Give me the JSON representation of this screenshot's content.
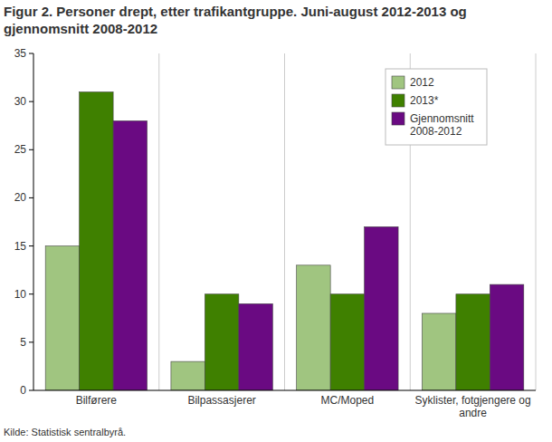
{
  "chart_data": {
    "type": "bar",
    "title": "Figur 2. Personer drept, etter trafikantgruppe. Juni-august 2012-2013 og gjennomsnitt 2008-2012",
    "categories": [
      "Bilførere",
      "Bilpassasjerer",
      "MC/Moped",
      "Syklister, fotgjengere og andre"
    ],
    "series": [
      {
        "name": "2012",
        "color": "#a0c580",
        "values": [
          15,
          3,
          13,
          8
        ]
      },
      {
        "name": "2013*",
        "color": "#3f8000",
        "values": [
          31,
          10,
          10,
          10
        ]
      },
      {
        "name": "Gjennomsnitt 2008-2012",
        "color": "#6a0a82",
        "values": [
          28,
          9,
          17,
          11
        ]
      }
    ],
    "ylim": [
      0,
      35
    ],
    "yticks": [
      0,
      5,
      10,
      15,
      20,
      25,
      30,
      35
    ],
    "grid": true,
    "legend": "top-right",
    "source": "Kilde: Statistisk sentralbyrå."
  }
}
